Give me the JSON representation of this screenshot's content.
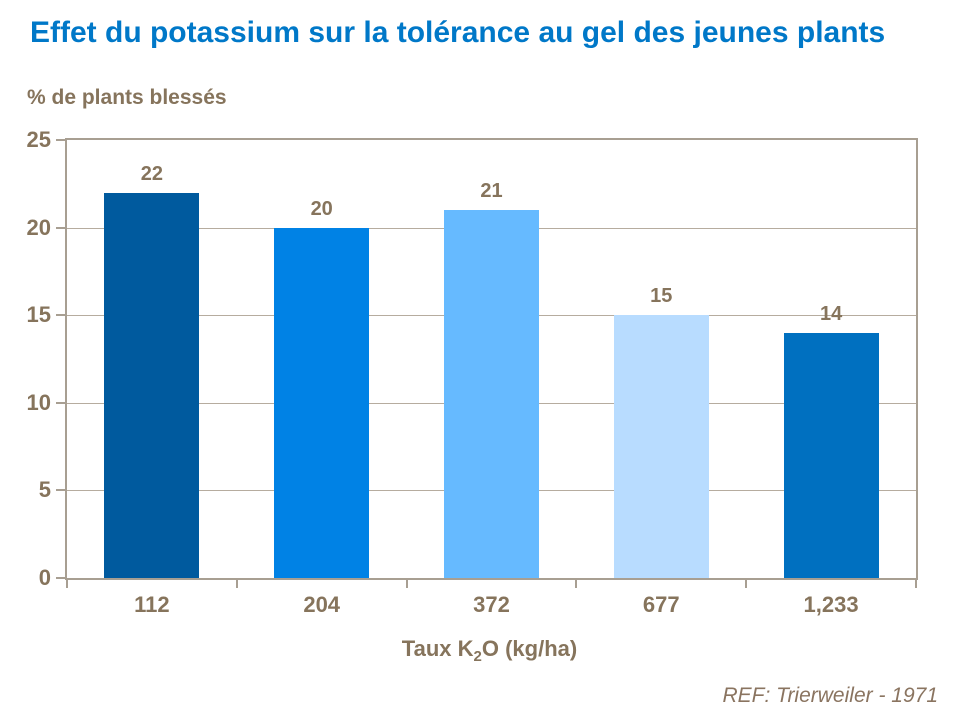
{
  "title": {
    "text": "Effet du potassium sur la tolérance au gel des jeunes plants"
  },
  "chart_data": {
    "type": "bar",
    "title": "Effet du potassium sur la tolérance au gel des jeunes plants",
    "ylabel": "% de plants blessés",
    "xlabel": "Taux K2O (kg/ha)",
    "xlabel_parts": {
      "prefix": "Taux K",
      "sub": "2",
      "suffix": "O (kg/ha)"
    },
    "categories": [
      "112",
      "204",
      "372",
      "677",
      "1,233"
    ],
    "values": [
      22,
      20,
      21,
      15,
      14
    ],
    "bar_colors": [
      "#005A9E",
      "#0082E5",
      "#66BAFF",
      "#B8DCFF",
      "#0070C0"
    ],
    "ylim": [
      0,
      25
    ],
    "yticks": [
      25,
      20,
      15,
      10,
      5,
      0
    ],
    "grid": true,
    "legend": false
  },
  "footer": {
    "ref": "REF: Trierweiler - 1971"
  },
  "colors": {
    "title_text": "#0078C8",
    "axis_text": "#86745C",
    "grid": "#B6AC9F",
    "frame": "#A89F92",
    "background": "#FFFFFF"
  }
}
